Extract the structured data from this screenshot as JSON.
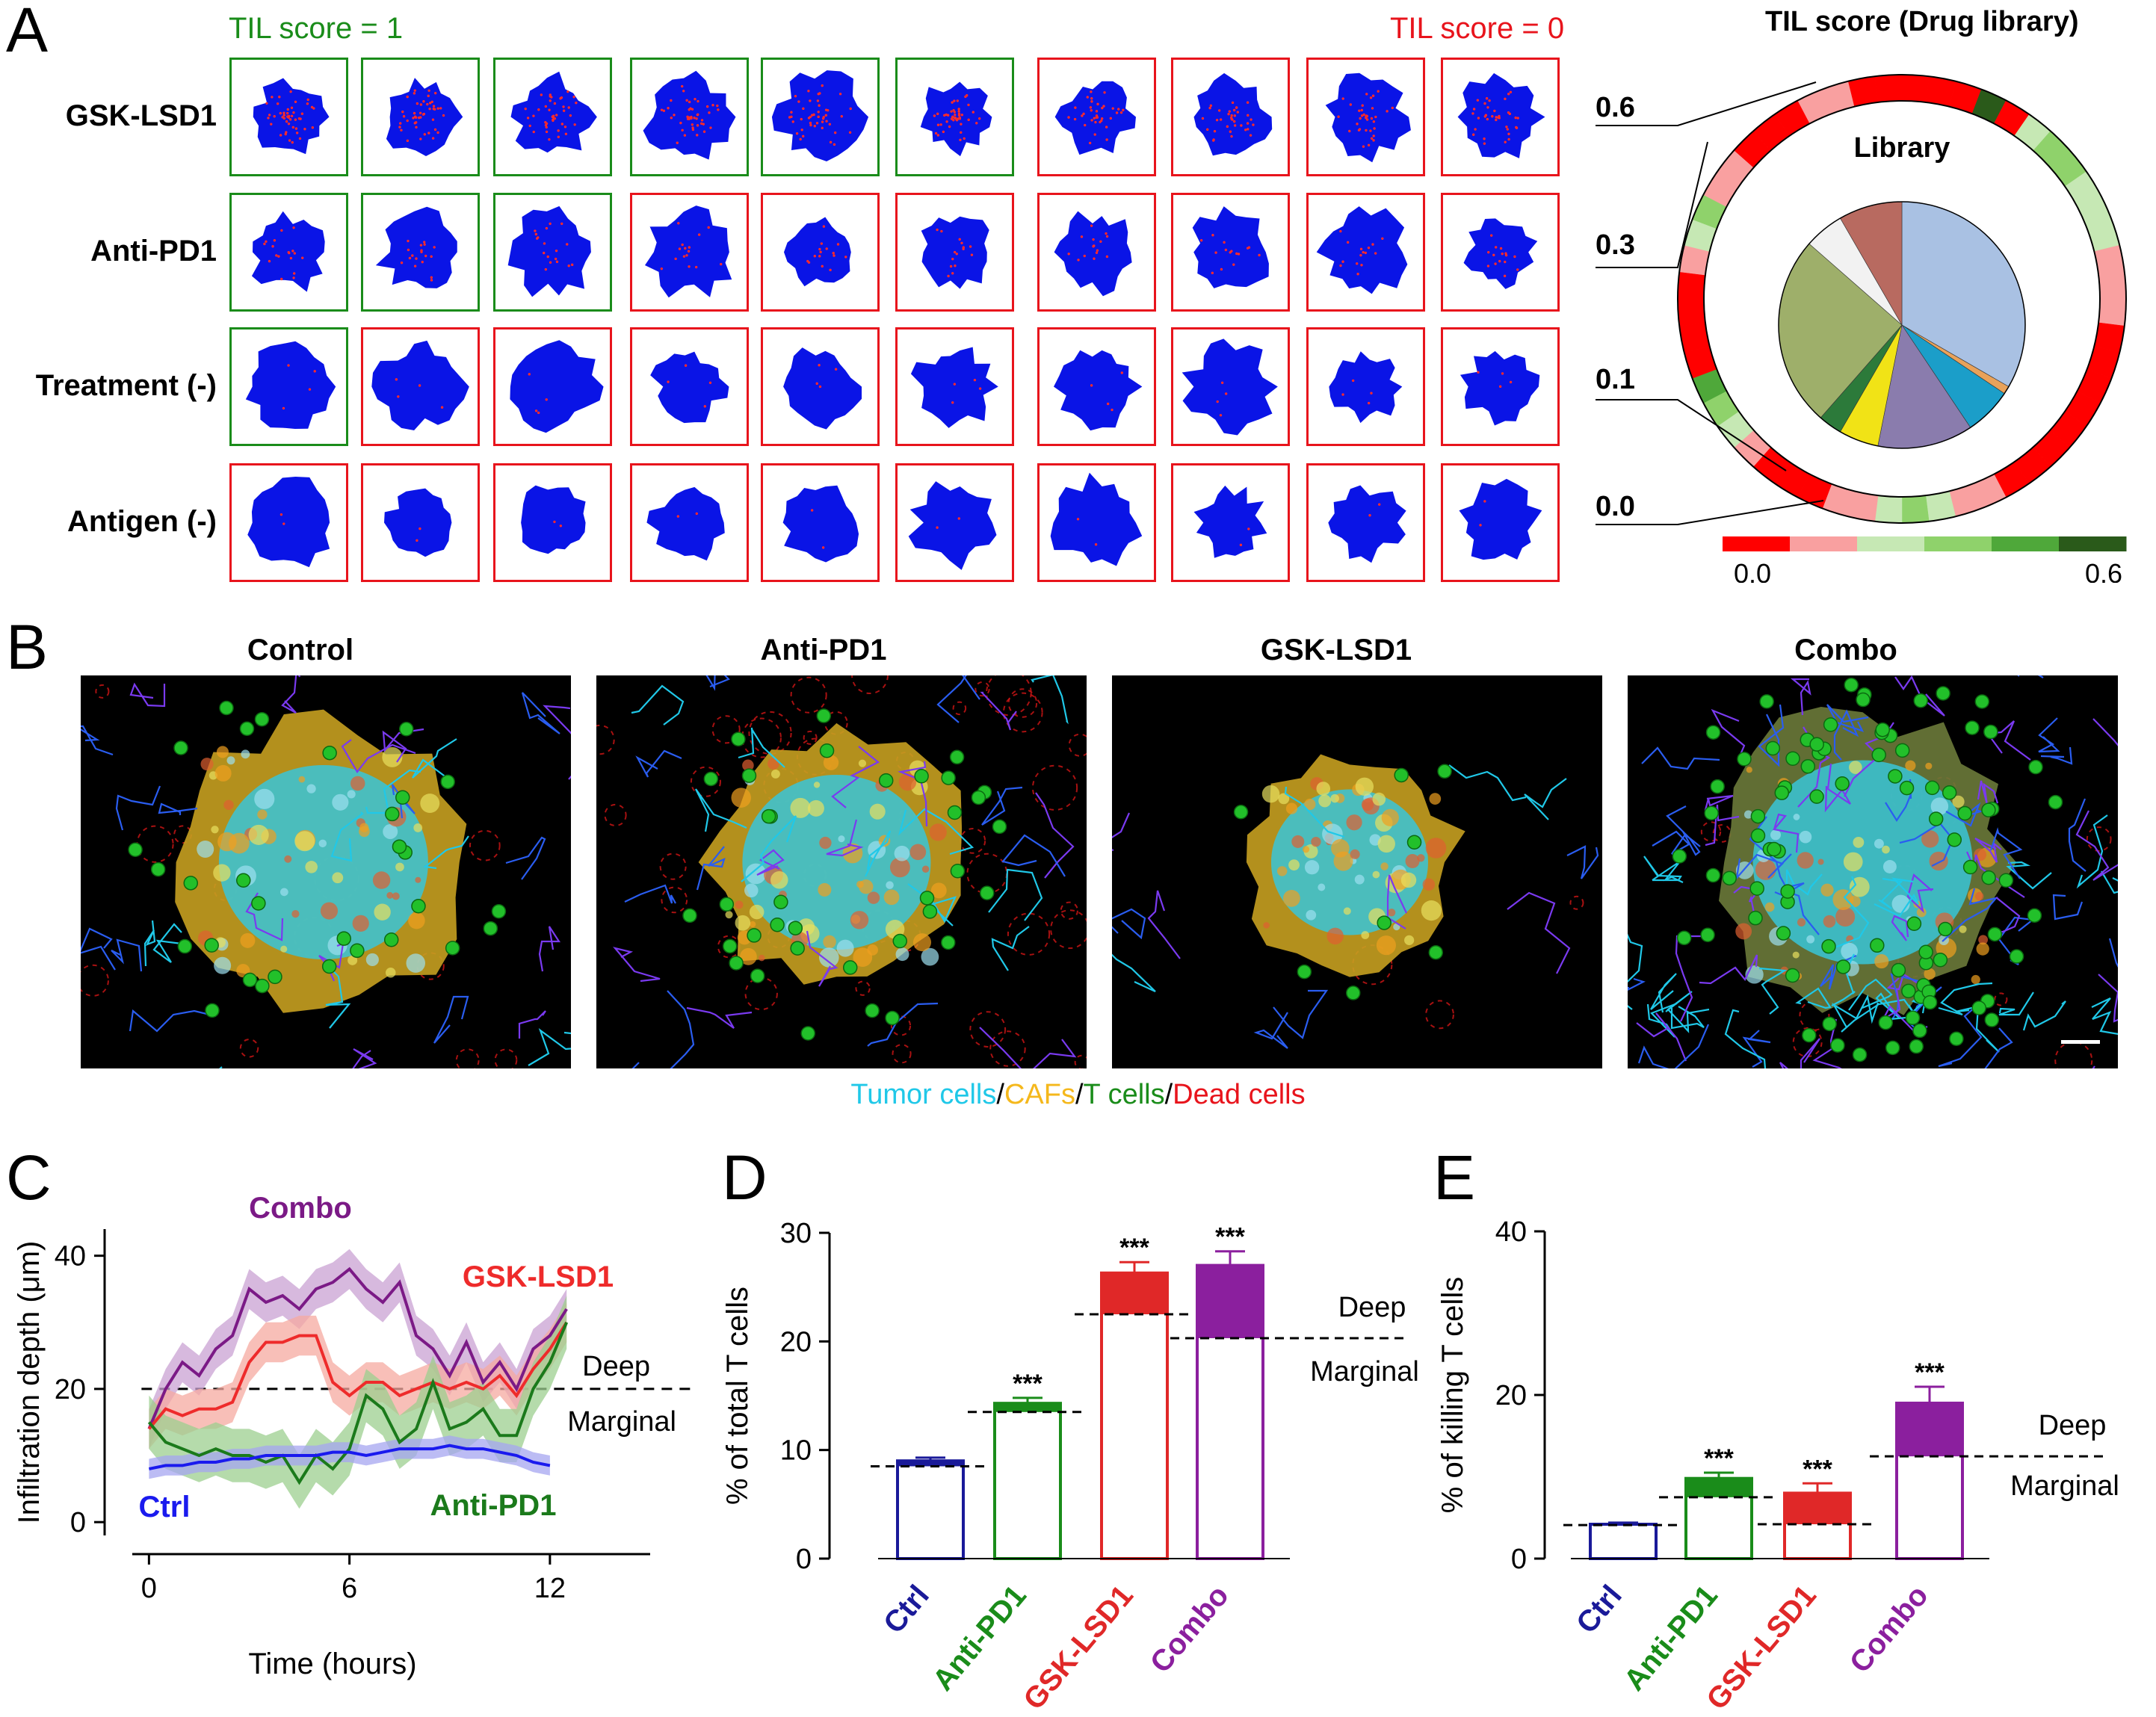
{
  "panel_labels": {
    "a": "A",
    "b": "B",
    "c": "C",
    "d": "D",
    "e": "E"
  },
  "panel_a": {
    "til1_label": "TIL score = 1",
    "til0_label": "TIL score = 0",
    "rows": [
      {
        "label": "GSK-LSD1",
        "scores": [
          1,
          1,
          1,
          1,
          1,
          1,
          0,
          0,
          0,
          0
        ],
        "red_density": "high"
      },
      {
        "label": "Anti-PD1",
        "scores": [
          1,
          1,
          1,
          0,
          0,
          0,
          0,
          0,
          0,
          0
        ],
        "red_density": "medium"
      },
      {
        "label": "Treatment (-)",
        "scores": [
          1,
          0,
          0,
          0,
          0,
          0,
          0,
          0,
          0,
          0
        ],
        "red_density": "low"
      },
      {
        "label": "Antigen (-)",
        "scores": [
          0,
          0,
          0,
          0,
          0,
          0,
          0,
          0,
          0,
          0
        ],
        "red_density": "minimal"
      }
    ],
    "colors": {
      "tumor": "#0a14e6",
      "dot": "#ff2a2a",
      "green": "#1a8c1a",
      "red": "#e8141c"
    },
    "ring": {
      "title": "TIL score (Drug library)",
      "center_label": "Library",
      "scale_labels": [
        "0.6",
        "0.3",
        "0.1",
        "0.0"
      ],
      "colorbar_min": "0.0",
      "colorbar_max": "0.6",
      "colorbar_colors": [
        "#ff0000",
        "#f9a0a0",
        "#c6e8b4",
        "#8fd26b",
        "#4fa83a",
        "#2a5a1a"
      ]
    }
  },
  "chart_data": [
    {
      "type": "pie",
      "title": "Library",
      "values": [
        32,
        1,
        6,
        12,
        5,
        3,
        24,
        5,
        8
      ],
      "colors": [
        "#a9c1e3",
        "#e9a25a",
        "#1b9ec9",
        "#8a7cad",
        "#f1e316",
        "#2c7a3a",
        "#9eaf6a",
        "#f2f2f2",
        "#b86a60"
      ]
    },
    {
      "type": "line",
      "title": "C",
      "xlabel": "Time (hours)",
      "ylabel": "Infiltration depth (μm)",
      "xlim": [
        -0.5,
        15
      ],
      "ylim": [
        -2,
        44
      ],
      "xticks": [
        0,
        6,
        12
      ],
      "yticks": [
        0,
        20,
        40
      ],
      "threshold": {
        "value": 20,
        "upper_label": "Deep",
        "lower_label": "Marginal"
      },
      "series": [
        {
          "name": "Combo",
          "color": "#7b1a86",
          "band": "#caa1d3",
          "band_width": 3,
          "x": [
            0,
            0.5,
            1,
            1.5,
            2,
            2.5,
            3,
            3.5,
            4,
            4.5,
            5,
            5.5,
            6,
            6.5,
            7,
            7.5,
            8,
            8.5,
            9,
            9.5,
            10,
            10.5,
            11,
            11.5,
            12,
            12.5
          ],
          "y": [
            14,
            20,
            24,
            22,
            26,
            28,
            35,
            33,
            34,
            32,
            35,
            36,
            38,
            35,
            33,
            36,
            28,
            26,
            22,
            27,
            21,
            24,
            20,
            26,
            28,
            32
          ]
        },
        {
          "name": "GSK-LSD1",
          "color": "#ee2b2b",
          "band": "#f5a9a0",
          "band_width": 3,
          "x": [
            0,
            0.5,
            1,
            1.5,
            2,
            2.5,
            3,
            3.5,
            4,
            4.5,
            5,
            5.5,
            6,
            6.5,
            7,
            7.5,
            8,
            8.5,
            9,
            9.5,
            10,
            10.5,
            11,
            11.5,
            12,
            12.5
          ],
          "y": [
            14,
            17,
            16,
            17,
            17,
            18,
            24,
            27,
            27,
            28,
            28,
            21,
            19,
            21,
            21,
            19,
            20,
            21,
            20,
            21,
            20,
            22,
            19,
            23,
            26,
            30
          ]
        },
        {
          "name": "Anti-PD1",
          "color": "#1b7a1b",
          "band": "#9ccf8f",
          "band_width": 4,
          "x": [
            0,
            0.5,
            1,
            1.5,
            2,
            2.5,
            3,
            3.5,
            4,
            4.5,
            5,
            5.5,
            6,
            6.5,
            7,
            7.5,
            8,
            8.5,
            9,
            9.5,
            10,
            10.5,
            11,
            11.5,
            12,
            12.5
          ],
          "y": [
            15,
            12,
            11,
            10,
            11,
            10,
            10,
            9,
            10,
            6,
            10,
            8,
            11,
            19,
            17,
            12,
            14,
            21,
            14,
            15,
            17,
            13,
            13,
            20,
            24,
            30
          ]
        },
        {
          "name": "Ctrl",
          "color": "#1a1aee",
          "band": "#a6a6f0",
          "band_width": 1.5,
          "x": [
            0,
            0.5,
            1,
            1.5,
            2,
            2.5,
            3,
            3.5,
            4,
            4.5,
            5,
            5.5,
            6,
            6.5,
            7,
            7.5,
            8,
            8.5,
            9,
            9.5,
            10,
            10.5,
            11,
            11.5,
            12
          ],
          "y": [
            8,
            8.5,
            8.5,
            9,
            9,
            9.5,
            9.5,
            10,
            10,
            10,
            10,
            10.5,
            10.5,
            10,
            10.5,
            11,
            11,
            11,
            11.5,
            11,
            11,
            10.5,
            10,
            9,
            8.5
          ]
        }
      ]
    },
    {
      "type": "bar",
      "title": "D",
      "ylabel": "% of total T cells",
      "ylim": [
        0,
        30
      ],
      "yticks": [
        0,
        10,
        20,
        30
      ],
      "categories": [
        "Ctrl",
        "Anti-PD1",
        "GSK-LSD1",
        "Combo"
      ],
      "category_colors": [
        "#1a1a99",
        "#1a8c1a",
        "#e02828",
        "#8b1f9e"
      ],
      "total": [
        9,
        14.3,
        26.3,
        27
      ],
      "error": [
        0.3,
        0.5,
        1.0,
        1.3
      ],
      "marginal": [
        8.5,
        13.5,
        22.5,
        20.3
      ],
      "significance": [
        "",
        "***",
        "***",
        "***"
      ],
      "threshold_labels": {
        "upper": "Deep",
        "lower": "Marginal"
      }
    },
    {
      "type": "bar",
      "title": "E",
      "ylabel": "% of killing T cells",
      "ylim": [
        0,
        40
      ],
      "yticks": [
        0,
        20,
        40
      ],
      "categories": [
        "Ctrl",
        "Anti-PD1",
        "GSK-LSD1",
        "Combo"
      ],
      "category_colors": [
        "#1a1a99",
        "#1a8c1a",
        "#e02828",
        "#8b1f9e"
      ],
      "total": [
        4.2,
        9.8,
        8,
        19
      ],
      "error": [
        0.2,
        0.7,
        1.2,
        2.0
      ],
      "marginal": [
        4.1,
        7.5,
        4.2,
        12.5
      ],
      "significance": [
        "",
        "***",
        "***",
        "***"
      ],
      "threshold_labels": {
        "upper": "Deep",
        "lower": "Marginal"
      }
    }
  ],
  "panel_b": {
    "titles": [
      "Control",
      "Anti-PD1",
      "GSK-LSD1",
      "Combo"
    ],
    "legend": [
      {
        "text": "Tumor cells",
        "color": "#20c8e8"
      },
      {
        "text": "/",
        "color": "#000000"
      },
      {
        "text": "CAFs",
        "color": "#f5b81c"
      },
      {
        "text": "/",
        "color": "#000000"
      },
      {
        "text": "T cells",
        "color": "#1a8c1a"
      },
      {
        "text": "/",
        "color": "#000000"
      },
      {
        "text": "Dead cells",
        "color": "#e8141c"
      }
    ]
  }
}
